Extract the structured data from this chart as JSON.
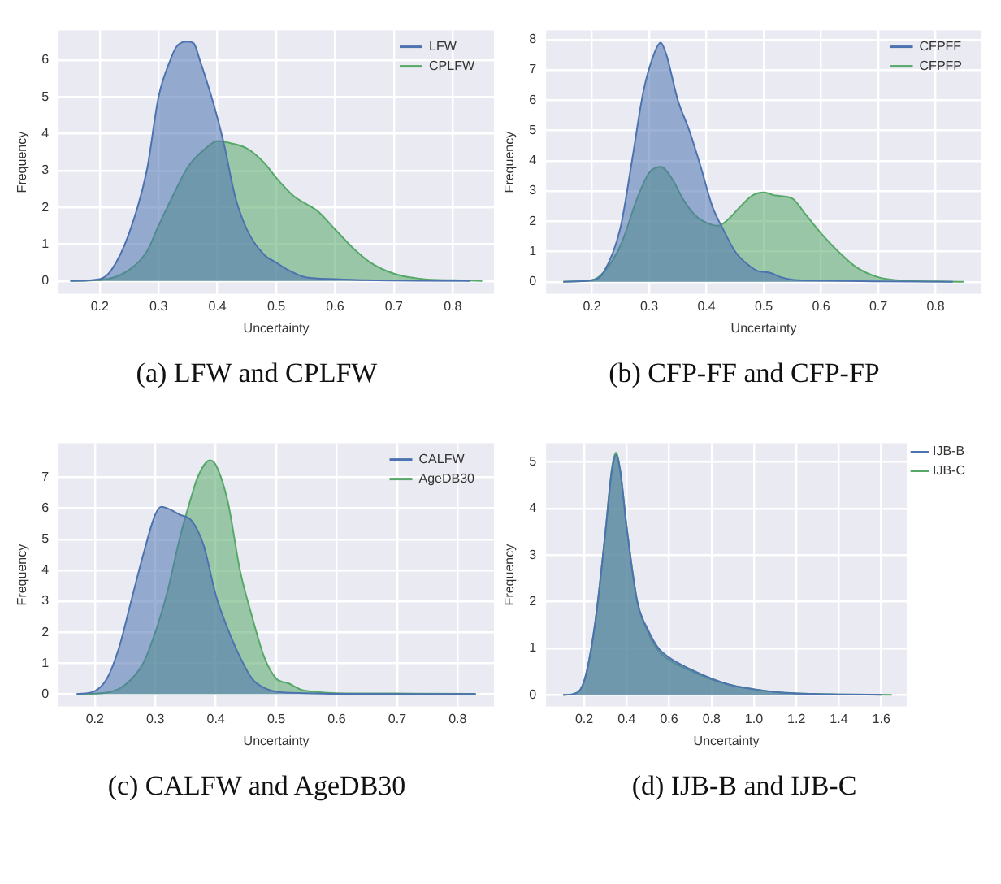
{
  "chart_data": [
    {
      "type": "area",
      "xlabel": "Uncertainty",
      "ylabel": "Frequency",
      "xlim": [
        0.13,
        0.87
      ],
      "xticks": [
        0.2,
        0.3,
        0.4,
        0.5,
        0.6,
        0.7,
        0.8
      ],
      "ylim": [
        -0.35,
        6.8
      ],
      "yticks": [
        0,
        1,
        2,
        3,
        4,
        5,
        6
      ],
      "grid": true,
      "legend": "top right",
      "annotations": [
        "(a) LFW and CPLFW"
      ],
      "series": [
        {
          "name": "LFW",
          "color": "#4c72b0",
          "x": [
            0.15,
            0.2,
            0.22,
            0.25,
            0.28,
            0.3,
            0.32,
            0.33,
            0.35,
            0.36,
            0.37,
            0.39,
            0.41,
            0.43,
            0.45,
            0.48,
            0.5,
            0.52,
            0.55,
            0.6,
            0.65,
            0.7,
            0.83
          ],
          "values": [
            0,
            0.05,
            0.3,
            1.3,
            3.0,
            5.0,
            6.0,
            6.35,
            6.5,
            6.45,
            6.0,
            5.0,
            3.8,
            2.3,
            1.4,
            0.7,
            0.5,
            0.3,
            0.1,
            0.05,
            0.02,
            0.01,
            0
          ]
        },
        {
          "name": "CPLFW",
          "color": "#55a868",
          "x": [
            0.15,
            0.2,
            0.25,
            0.28,
            0.3,
            0.33,
            0.35,
            0.38,
            0.4,
            0.42,
            0.45,
            0.48,
            0.5,
            0.53,
            0.55,
            0.57,
            0.6,
            0.63,
            0.66,
            0.7,
            0.75,
            0.8,
            0.85
          ],
          "values": [
            0,
            0.02,
            0.3,
            0.8,
            1.5,
            2.5,
            3.1,
            3.6,
            3.8,
            3.75,
            3.6,
            3.2,
            2.8,
            2.3,
            2.1,
            1.9,
            1.4,
            0.9,
            0.5,
            0.2,
            0.05,
            0.02,
            0
          ]
        }
      ]
    },
    {
      "type": "area",
      "xlabel": "Uncertainty",
      "ylabel": "Frequency",
      "xlim": [
        0.12,
        0.88
      ],
      "xticks": [
        0.2,
        0.3,
        0.4,
        0.5,
        0.6,
        0.7,
        0.8
      ],
      "ylim": [
        -0.4,
        8.3
      ],
      "yticks": [
        0,
        1,
        2,
        3,
        4,
        5,
        6,
        7,
        8
      ],
      "grid": true,
      "legend": "top right",
      "annotations": [
        "(b) CFP-FF and CFP-FP"
      ],
      "series": [
        {
          "name": "CFPFF",
          "color": "#4c72b0",
          "x": [
            0.15,
            0.2,
            0.22,
            0.25,
            0.27,
            0.29,
            0.31,
            0.32,
            0.33,
            0.35,
            0.37,
            0.39,
            0.41,
            0.43,
            0.45,
            0.47,
            0.49,
            0.51,
            0.53,
            0.56,
            0.6,
            0.7,
            0.83
          ],
          "values": [
            0,
            0.05,
            0.3,
            1.8,
            4.0,
            6.3,
            7.6,
            7.9,
            7.5,
            6.0,
            5.0,
            3.8,
            2.5,
            1.7,
            1.0,
            0.6,
            0.35,
            0.3,
            0.15,
            0.05,
            0.04,
            0.01,
            0
          ]
        },
        {
          "name": "CFPFP",
          "color": "#55a868",
          "x": [
            0.15,
            0.2,
            0.22,
            0.25,
            0.28,
            0.3,
            0.32,
            0.34,
            0.36,
            0.38,
            0.4,
            0.42,
            0.44,
            0.46,
            0.48,
            0.5,
            0.52,
            0.55,
            0.57,
            0.6,
            0.63,
            0.66,
            0.7,
            0.75,
            0.8,
            0.85
          ],
          "values": [
            0,
            0.05,
            0.3,
            1.2,
            2.8,
            3.6,
            3.8,
            3.4,
            2.7,
            2.2,
            1.95,
            1.85,
            2.1,
            2.5,
            2.85,
            2.95,
            2.85,
            2.75,
            2.3,
            1.6,
            1.0,
            0.5,
            0.15,
            0.03,
            0.01,
            0
          ]
        }
      ]
    },
    {
      "type": "area",
      "xlabel": "Uncertainty",
      "ylabel": "Frequency",
      "xlim": [
        0.14,
        0.86
      ],
      "xticks": [
        0.2,
        0.3,
        0.4,
        0.5,
        0.6,
        0.7,
        0.8
      ],
      "ylim": [
        -0.4,
        8.1
      ],
      "yticks": [
        0,
        1,
        2,
        3,
        4,
        5,
        6,
        7
      ],
      "grid": true,
      "legend": "top right",
      "annotations": [
        "(c) CALFW and AgeDB30"
      ],
      "series": [
        {
          "name": "CALFW",
          "color": "#4c72b0",
          "x": [
            0.17,
            0.2,
            0.22,
            0.24,
            0.26,
            0.28,
            0.3,
            0.31,
            0.32,
            0.34,
            0.36,
            0.38,
            0.4,
            0.42,
            0.44,
            0.46,
            0.48,
            0.5,
            0.55,
            0.6,
            0.83
          ],
          "values": [
            0,
            0.1,
            0.5,
            1.5,
            3.0,
            4.5,
            5.8,
            6.05,
            6.0,
            5.8,
            5.6,
            4.8,
            3.2,
            2.1,
            1.2,
            0.5,
            0.2,
            0.08,
            0.03,
            0.01,
            0
          ]
        },
        {
          "name": "AgeDB30",
          "color": "#55a868",
          "x": [
            0.17,
            0.22,
            0.25,
            0.28,
            0.3,
            0.32,
            0.34,
            0.36,
            0.37,
            0.39,
            0.4,
            0.42,
            0.44,
            0.46,
            0.48,
            0.5,
            0.52,
            0.54,
            0.56,
            0.6,
            0.7,
            0.83
          ],
          "values": [
            0,
            0.05,
            0.3,
            1.0,
            2.0,
            3.3,
            5.0,
            6.4,
            7.0,
            7.55,
            7.4,
            6.2,
            4.0,
            2.5,
            1.2,
            0.5,
            0.35,
            0.15,
            0.08,
            0.03,
            0.02,
            0.01
          ]
        }
      ]
    },
    {
      "type": "area",
      "xlabel": "Uncertainty",
      "ylabel": "Frequency",
      "xlim": [
        0.02,
        1.72
      ],
      "xticks": [
        0.2,
        0.4,
        0.6,
        0.8,
        {
          "value": 1,
          "label": "1.0"
        },
        1.2,
        1.4,
        1.6
      ],
      "ylim": [
        -0.25,
        5.4
      ],
      "yticks": [
        0,
        1,
        2,
        3,
        4,
        5
      ],
      "grid": true,
      "legend": "right",
      "annotations": [
        "(d) IJB-B and IJB-C"
      ],
      "series": [
        {
          "name": "IJB-B",
          "color": "#4c72b0",
          "x": [
            0.1,
            0.15,
            0.2,
            0.25,
            0.3,
            0.33,
            0.35,
            0.37,
            0.4,
            0.45,
            0.5,
            0.55,
            0.6,
            0.7,
            0.8,
            0.9,
            1.0,
            1.1,
            1.2,
            1.4,
            1.6
          ],
          "values": [
            0,
            0.02,
            0.3,
            1.5,
            3.5,
            4.8,
            5.15,
            4.8,
            3.6,
            2.0,
            1.4,
            1.0,
            0.8,
            0.55,
            0.35,
            0.2,
            0.12,
            0.06,
            0.03,
            0.01,
            0
          ]
        },
        {
          "name": "IJB-C",
          "color": "#55a868",
          "x": [
            0.1,
            0.15,
            0.2,
            0.25,
            0.3,
            0.33,
            0.35,
            0.37,
            0.4,
            0.45,
            0.5,
            0.55,
            0.6,
            0.7,
            0.8,
            0.9,
            1.0,
            1.1,
            1.2,
            1.4,
            1.65
          ],
          "values": [
            0,
            0.02,
            0.3,
            1.5,
            3.5,
            4.85,
            5.2,
            4.8,
            3.6,
            2.0,
            1.35,
            0.95,
            0.75,
            0.52,
            0.33,
            0.2,
            0.12,
            0.06,
            0.03,
            0.01,
            0
          ]
        }
      ]
    }
  ]
}
